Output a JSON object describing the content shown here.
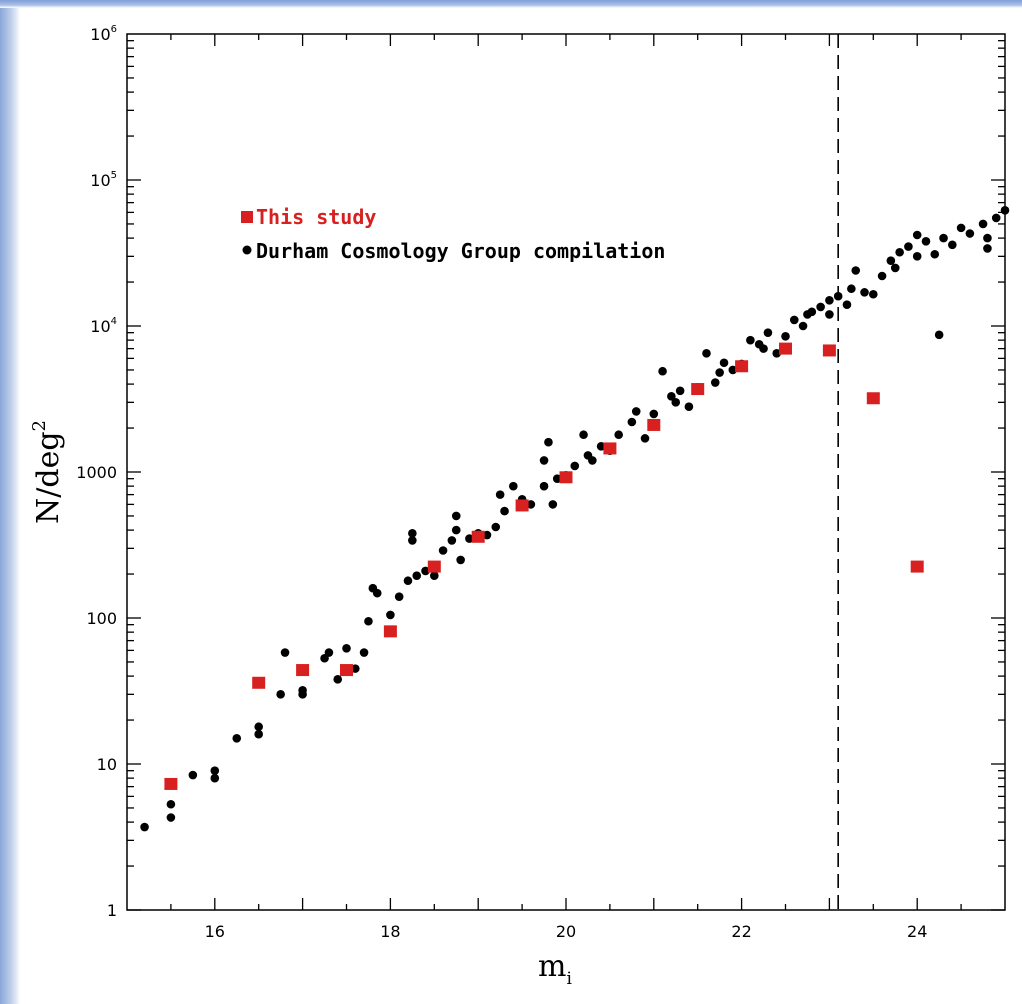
{
  "chart_data": {
    "type": "scatter",
    "xlabel": "m",
    "xlabel_sub": "i",
    "ylabel": "N/deg",
    "ylabel_sup": "2",
    "xlim": [
      15,
      25
    ],
    "ylim": [
      1,
      1000000
    ],
    "log_y": true,
    "grid": false,
    "x_ticks": [
      16,
      18,
      20,
      22,
      24
    ],
    "y_ticks": [
      {
        "value": 1,
        "label": "1",
        "exp": ""
      },
      {
        "value": 10,
        "label": "10",
        "exp": ""
      },
      {
        "value": 100,
        "label": "100",
        "exp": ""
      },
      {
        "value": 1000,
        "label": "1000",
        "exp": ""
      },
      {
        "value": 10000,
        "label": "10",
        "exp": "4"
      },
      {
        "value": 100000,
        "label": "10",
        "exp": "5"
      },
      {
        "value": 1000000,
        "label": "10",
        "exp": "6"
      }
    ],
    "vline_x": 23.1,
    "legend": [
      {
        "label": "This study",
        "marker": "square",
        "color": "#d82020"
      },
      {
        "label": "Durham Cosmology Group compilation",
        "marker": "circle",
        "color": "#000000"
      }
    ],
    "legend_position": "upper-left",
    "series": [
      {
        "name": "This study",
        "marker": "square",
        "color": "#d82020",
        "points": [
          [
            15.5,
            7.3
          ],
          [
            16.5,
            36
          ],
          [
            17.0,
            44
          ],
          [
            17.5,
            44
          ],
          [
            18.0,
            81
          ],
          [
            18.5,
            225
          ],
          [
            19.0,
            360
          ],
          [
            19.5,
            590
          ],
          [
            20.0,
            920
          ],
          [
            20.5,
            1450
          ],
          [
            21.0,
            2100
          ],
          [
            21.5,
            3700
          ],
          [
            22.0,
            5300
          ],
          [
            22.5,
            7000
          ],
          [
            23.0,
            6800
          ],
          [
            23.5,
            3200
          ],
          [
            24.0,
            225
          ]
        ]
      },
      {
        "name": "Durham Cosmology Group compilation",
        "marker": "circle",
        "color": "#000000",
        "points": [
          [
            15.2,
            3.7
          ],
          [
            15.5,
            4.3
          ],
          [
            15.5,
            5.3
          ],
          [
            15.75,
            8.4
          ],
          [
            16.0,
            8.0
          ],
          [
            16.0,
            9.0
          ],
          [
            16.25,
            15
          ],
          [
            16.5,
            16
          ],
          [
            16.5,
            18
          ],
          [
            16.75,
            30
          ],
          [
            16.8,
            58
          ],
          [
            17.0,
            32
          ],
          [
            17.0,
            30
          ],
          [
            17.25,
            53
          ],
          [
            17.3,
            58
          ],
          [
            17.4,
            38
          ],
          [
            17.5,
            62
          ],
          [
            17.6,
            45
          ],
          [
            17.7,
            58
          ],
          [
            17.75,
            95
          ],
          [
            17.8,
            160
          ],
          [
            17.85,
            148
          ],
          [
            18.0,
            105
          ],
          [
            18.1,
            140
          ],
          [
            18.2,
            180
          ],
          [
            18.25,
            380
          ],
          [
            18.25,
            340
          ],
          [
            18.3,
            195
          ],
          [
            18.4,
            210
          ],
          [
            18.5,
            195
          ],
          [
            18.6,
            290
          ],
          [
            18.7,
            340
          ],
          [
            18.75,
            400
          ],
          [
            18.75,
            500
          ],
          [
            18.8,
            250
          ],
          [
            18.9,
            350
          ],
          [
            19.0,
            380
          ],
          [
            19.1,
            370
          ],
          [
            19.2,
            420
          ],
          [
            19.25,
            700
          ],
          [
            19.3,
            540
          ],
          [
            19.4,
            800
          ],
          [
            19.5,
            650
          ],
          [
            19.6,
            600
          ],
          [
            19.75,
            800
          ],
          [
            19.75,
            1200
          ],
          [
            19.8,
            1600
          ],
          [
            19.85,
            600
          ],
          [
            19.9,
            900
          ],
          [
            20.0,
            950
          ],
          [
            20.1,
            1100
          ],
          [
            20.2,
            1800
          ],
          [
            20.25,
            1300
          ],
          [
            20.3,
            1200
          ],
          [
            20.4,
            1500
          ],
          [
            20.5,
            1400
          ],
          [
            20.6,
            1800
          ],
          [
            20.75,
            2200
          ],
          [
            20.8,
            2600
          ],
          [
            20.9,
            1700
          ],
          [
            21.0,
            2100
          ],
          [
            21.0,
            2500
          ],
          [
            21.1,
            4900
          ],
          [
            21.2,
            3300
          ],
          [
            21.25,
            3000
          ],
          [
            21.3,
            3600
          ],
          [
            21.4,
            2800
          ],
          [
            21.5,
            3800
          ],
          [
            21.6,
            6500
          ],
          [
            21.7,
            4100
          ],
          [
            21.75,
            4800
          ],
          [
            21.8,
            5600
          ],
          [
            21.9,
            5000
          ],
          [
            22.0,
            5500
          ],
          [
            22.1,
            8000
          ],
          [
            22.2,
            7500
          ],
          [
            22.25,
            7000
          ],
          [
            22.3,
            9000
          ],
          [
            22.4,
            6500
          ],
          [
            22.5,
            8500
          ],
          [
            22.6,
            11000
          ],
          [
            22.7,
            10000
          ],
          [
            22.75,
            12000
          ],
          [
            22.8,
            12500
          ],
          [
            22.9,
            13500
          ],
          [
            23.0,
            12000
          ],
          [
            23.0,
            15000
          ],
          [
            23.1,
            16000
          ],
          [
            23.2,
            14000
          ],
          [
            23.25,
            18000
          ],
          [
            23.3,
            24000
          ],
          [
            23.4,
            17000
          ],
          [
            23.5,
            16500
          ],
          [
            23.6,
            22000
          ],
          [
            23.7,
            28000
          ],
          [
            23.75,
            25000
          ],
          [
            23.8,
            32000
          ],
          [
            23.9,
            35000
          ],
          [
            24.0,
            30000
          ],
          [
            24.0,
            42000
          ],
          [
            24.1,
            38000
          ],
          [
            24.2,
            31000
          ],
          [
            24.25,
            8700
          ],
          [
            24.3,
            40000
          ],
          [
            24.4,
            36000
          ],
          [
            24.5,
            47000
          ],
          [
            24.6,
            43000
          ],
          [
            24.75,
            50000
          ],
          [
            24.8,
            40000
          ],
          [
            24.8,
            34000
          ],
          [
            24.9,
            55000
          ],
          [
            25.0,
            62000
          ]
        ]
      }
    ]
  }
}
